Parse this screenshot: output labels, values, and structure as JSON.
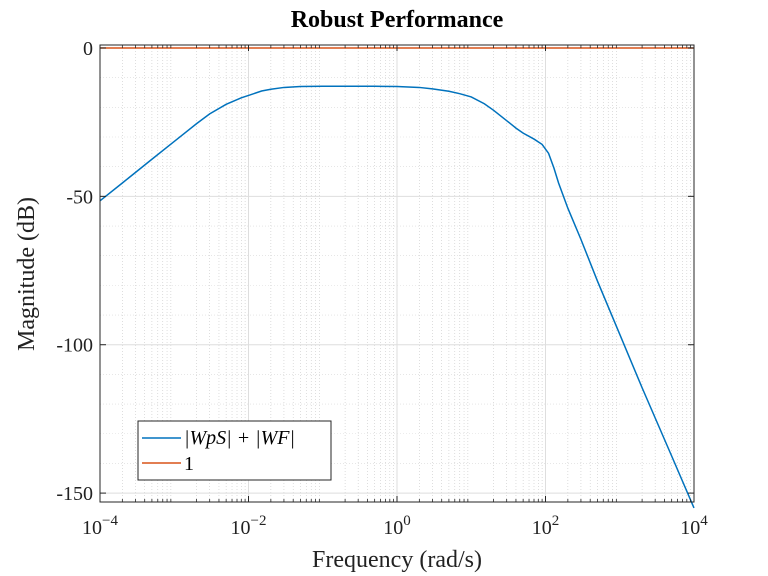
{
  "chart_data": {
    "type": "line",
    "title": "Robust Performance",
    "xlabel": "Frequency (rad/s)",
    "ylabel": "Magnitude (dB)",
    "xscale": "log",
    "xlim": [
      0.0001,
      10000
    ],
    "ylim": [
      -153,
      1
    ],
    "grid": true,
    "minor_grid": true,
    "legend_position": "bottom-left",
    "x_ticks": [
      {
        "value": 0.0001,
        "base": "10",
        "exp": "−4"
      },
      {
        "value": 0.01,
        "base": "10",
        "exp": "−2"
      },
      {
        "value": 1,
        "base": "10",
        "exp": "0"
      },
      {
        "value": 100,
        "base": "10",
        "exp": "2"
      },
      {
        "value": 10000,
        "base": "10",
        "exp": "4"
      }
    ],
    "y_ticks": [
      {
        "value": 0,
        "label": "0"
      },
      {
        "value": -50,
        "label": "-50"
      },
      {
        "value": -100,
        "label": "-100"
      },
      {
        "value": -150,
        "label": "-150"
      }
    ],
    "series": [
      {
        "name": "|WpS| + |WF|",
        "color": "#0072BD",
        "x": [
          0.0001,
          0.0002,
          0.0005,
          0.001,
          0.002,
          0.003,
          0.005,
          0.008,
          0.01,
          0.015,
          0.02,
          0.03,
          0.05,
          0.1,
          0.2,
          0.5,
          1,
          2,
          3,
          5,
          7,
          10,
          15,
          20,
          30,
          40,
          50,
          70,
          90,
          110,
          130,
          150,
          200,
          300,
          500,
          1000,
          2000,
          5000,
          10000
        ],
        "y": [
          -51.5,
          -45.5,
          -37.5,
          -31.5,
          -25.5,
          -22.2,
          -19.0,
          -16.8,
          -16.0,
          -14.5,
          -13.9,
          -13.3,
          -13.0,
          -12.9,
          -12.9,
          -12.9,
          -13.0,
          -13.3,
          -13.8,
          -14.6,
          -15.4,
          -16.5,
          -18.8,
          -21.0,
          -24.5,
          -27.0,
          -28.7,
          -30.7,
          -32.5,
          -35.5,
          -40.5,
          -45.5,
          -54.0,
          -64.5,
          -78.5,
          -96.5,
          -114.5,
          -137.5,
          -155.0
        ]
      },
      {
        "name": "1",
        "color": "#D95319",
        "x": [
          0.0001,
          10000
        ],
        "y": [
          0,
          0
        ]
      }
    ]
  }
}
